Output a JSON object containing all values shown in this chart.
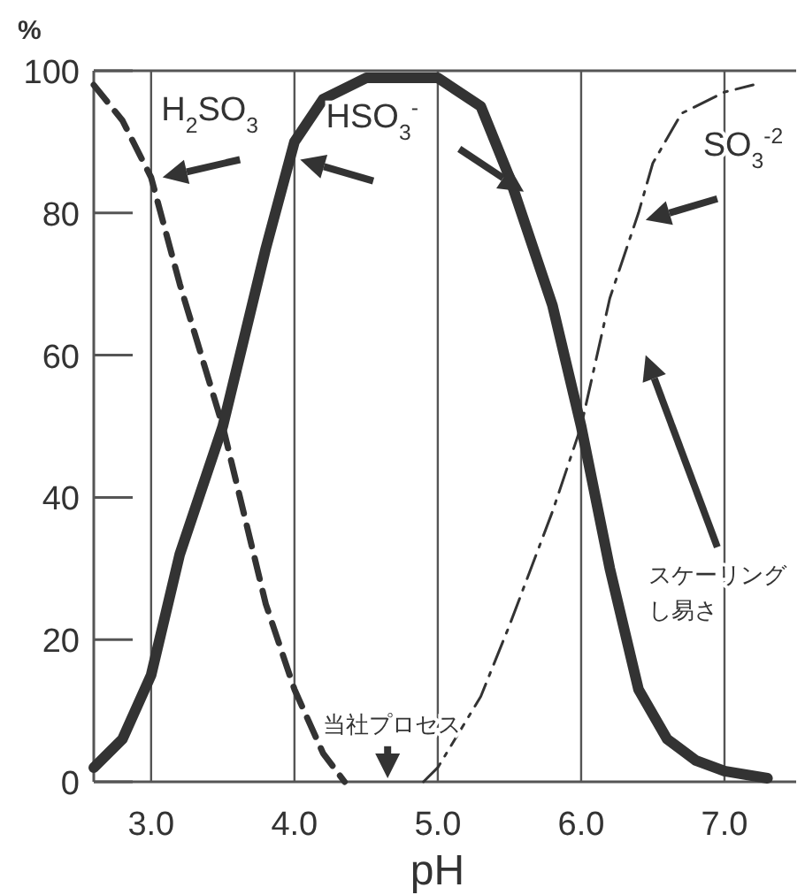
{
  "chart_data": {
    "type": "line",
    "xlabel": "pH",
    "ylabel": "%",
    "xlim": [
      2.6,
      7.5
    ],
    "ylim": [
      0,
      100
    ],
    "xticks": [
      {
        "value": 3,
        "label": "3.0"
      },
      {
        "value": 4,
        "label": "4.0"
      },
      {
        "value": 5,
        "label": "5.0"
      },
      {
        "value": 6,
        "label": "6.0"
      },
      {
        "value": 7,
        "label": "7.0"
      }
    ],
    "yticks": [
      0,
      20,
      40,
      60,
      80,
      100
    ],
    "grid": "x",
    "marker": "none",
    "series": [
      {
        "name": "H$_{2}$SO$_{3}$",
        "color": "#333333",
        "line_style": "dashed",
        "x": [
          2.6,
          2.8,
          3.0,
          3.2,
          3.5,
          3.8,
          4.0,
          4.2,
          4.35
        ],
        "values": [
          98,
          93,
          85,
          70,
          50,
          25,
          13,
          4,
          0
        ]
      },
      {
        "name": "HSO$_{3}$$^{-}$",
        "color": "#333333",
        "line_style": "solid",
        "x": [
          2.6,
          2.8,
          3.0,
          3.2,
          3.5,
          3.8,
          4.0,
          4.2,
          4.5,
          5.0,
          5.3,
          5.5,
          5.8,
          6.0,
          6.2,
          6.4,
          6.6,
          6.8,
          7.0,
          7.3
        ],
        "values": [
          2,
          6,
          15,
          32,
          50,
          75,
          90,
          96,
          99,
          99,
          95,
          85,
          67,
          50,
          30,
          13,
          6,
          3,
          1.5,
          0.5
        ]
      },
      {
        "name": "SO$_{3}$$^{-2}$",
        "color": "#333333",
        "line_style": "dashdot",
        "x": [
          4.9,
          5.0,
          5.3,
          5.5,
          5.8,
          6.0,
          6.2,
          6.4,
          6.5,
          6.7,
          7.0,
          7.2
        ],
        "values": [
          0,
          2,
          12,
          22,
          38,
          50,
          68,
          80,
          87,
          94,
          97,
          98
        ]
      }
    ],
    "legend": "top",
    "annotations": [
      "当社プロセス",
      "スケーリング",
      "し易さ"
    ]
  }
}
